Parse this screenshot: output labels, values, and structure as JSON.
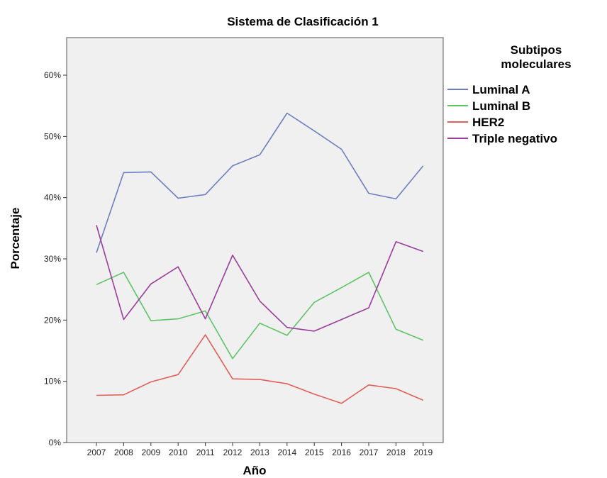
{
  "chart_data": {
    "type": "line",
    "title": "Sistema de Clasificación 1",
    "xlabel": "Año",
    "ylabel": "Porcentaje",
    "categories": [
      "2007",
      "2008",
      "2009",
      "2010",
      "2011",
      "2012",
      "2013",
      "2014",
      "2015",
      "2016",
      "2017",
      "2018",
      "2019"
    ],
    "ylim": [
      0,
      0.6
    ],
    "yticks": [
      0,
      0.1,
      0.2,
      0.3,
      0.4,
      0.5,
      0.6
    ],
    "ytick_labels": [
      "0%",
      "10%",
      "20%",
      "30%",
      "40%",
      "50%",
      "60%"
    ],
    "grid": false,
    "background": "#f0f0f0",
    "legend": {
      "title": "Subtipos moleculares",
      "title_lines": [
        "Subtipos",
        "moleculares"
      ],
      "placement": "outside-right"
    },
    "series": [
      {
        "name": "Luminal A",
        "color": "#6d7fc0",
        "values": [
          0.31,
          0.441,
          0.442,
          0.399,
          0.405,
          0.452,
          0.47,
          0.538,
          0.509,
          0.479,
          0.407,
          0.398,
          0.452
        ]
      },
      {
        "name": "Luminal B",
        "color": "#5ec466",
        "values": [
          0.258,
          0.278,
          0.199,
          0.202,
          0.215,
          0.137,
          0.195,
          0.175,
          0.229,
          0.253,
          0.278,
          0.185,
          0.167
        ]
      },
      {
        "name": "HER2",
        "color": "#e0605a",
        "values": [
          0.077,
          0.078,
          0.099,
          0.111,
          0.176,
          0.104,
          0.103,
          0.096,
          0.079,
          0.064,
          0.094,
          0.088,
          0.069
        ]
      },
      {
        "name": "Triple negativo",
        "color": "#9a3e9c",
        "values": [
          0.355,
          0.201,
          0.259,
          0.287,
          0.202,
          0.306,
          0.231,
          0.188,
          0.182,
          0.201,
          0.22,
          0.328,
          0.312
        ]
      }
    ]
  }
}
